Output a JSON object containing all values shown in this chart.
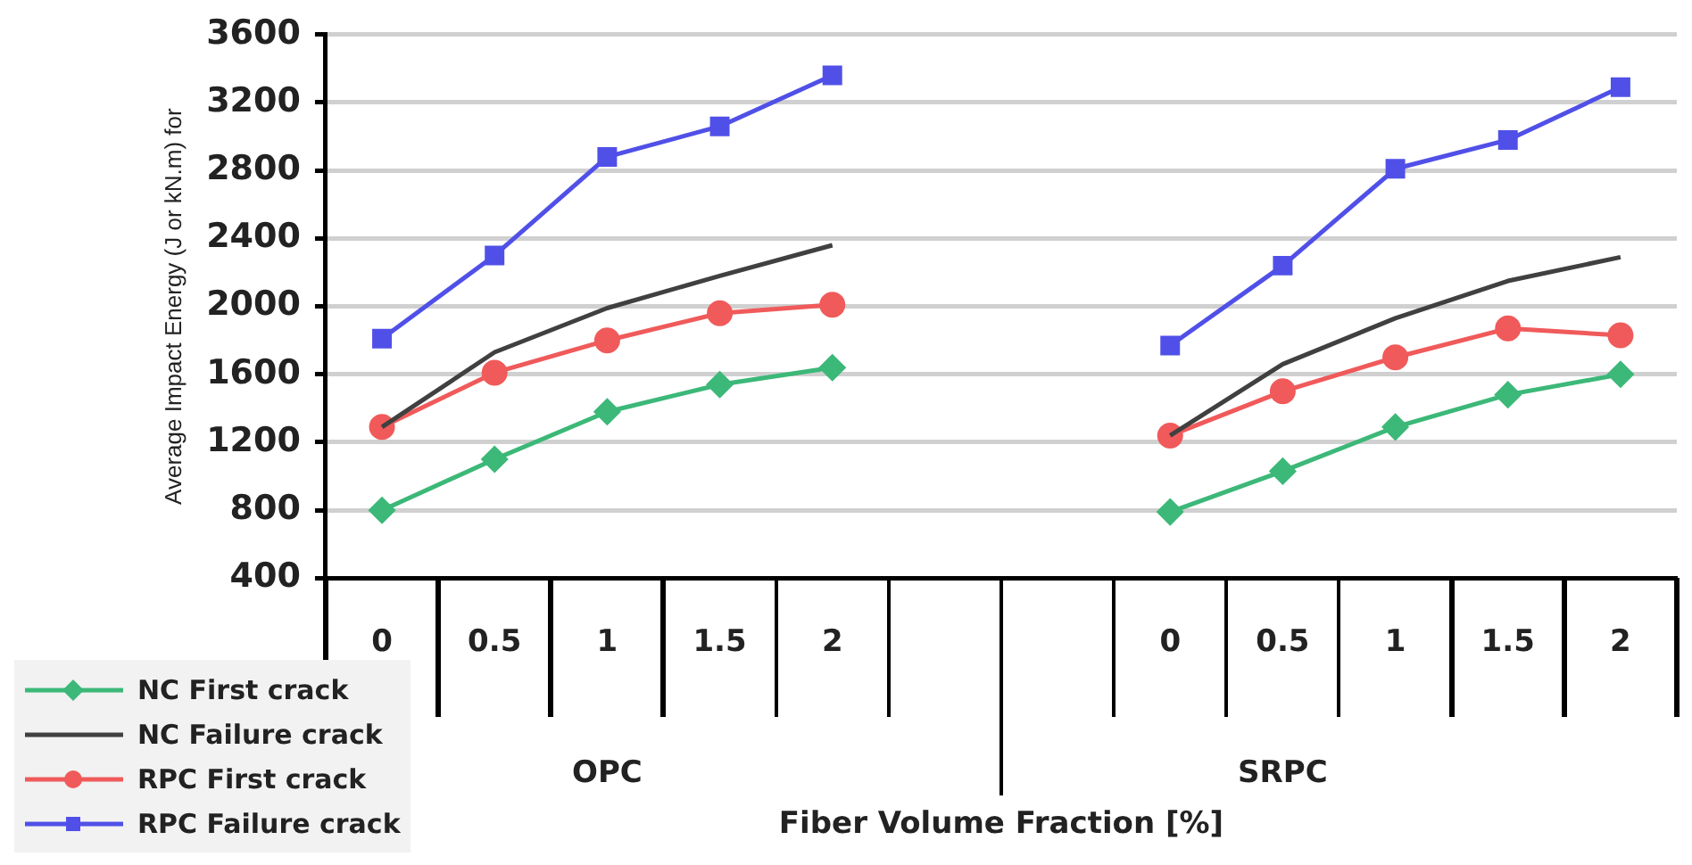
{
  "chart_data": {
    "type": "line",
    "ylabel": "Average Impact Energy (J or kN.m) for",
    "xlabel": "Fiber Volume Fraction [%]",
    "categories": [
      "0",
      "0.5",
      "1",
      "1.5",
      "2",
      null,
      null,
      "0",
      "0.5",
      "1",
      "1.5",
      "2"
    ],
    "annotations": [
      "OPC",
      "SRPC"
    ],
    "ylim": [
      400,
      3600
    ],
    "yticks": [
      400,
      800,
      1200,
      1600,
      2000,
      2400,
      2800,
      3200,
      3600
    ],
    "grid": "y",
    "legend": "bottom left",
    "series": [
      {
        "name": "NC First crack",
        "color": "#3cb878",
        "marker": "diamond",
        "values": [
          800,
          1100,
          1380,
          1540,
          1640,
          null,
          null,
          790,
          1030,
          1290,
          1480,
          1600
        ]
      },
      {
        "name": "NC Failure crack",
        "color": "#404040",
        "marker": "none",
        "values": [
          1290,
          1730,
          1990,
          2180,
          2360,
          null,
          null,
          1240,
          1660,
          1930,
          2150,
          2290
        ]
      },
      {
        "name": "RPC First crack",
        "color": "#f05a5a",
        "marker": "circle",
        "values": [
          1290,
          1610,
          1800,
          1960,
          2010,
          null,
          null,
          1240,
          1500,
          1700,
          1870,
          1830
        ]
      },
      {
        "name": "RPC Failure crack",
        "color": "#5050e8",
        "marker": "square",
        "values": [
          1810,
          2300,
          2880,
          3060,
          3360,
          null,
          null,
          1770,
          2240,
          2810,
          2980,
          3290
        ]
      }
    ]
  }
}
